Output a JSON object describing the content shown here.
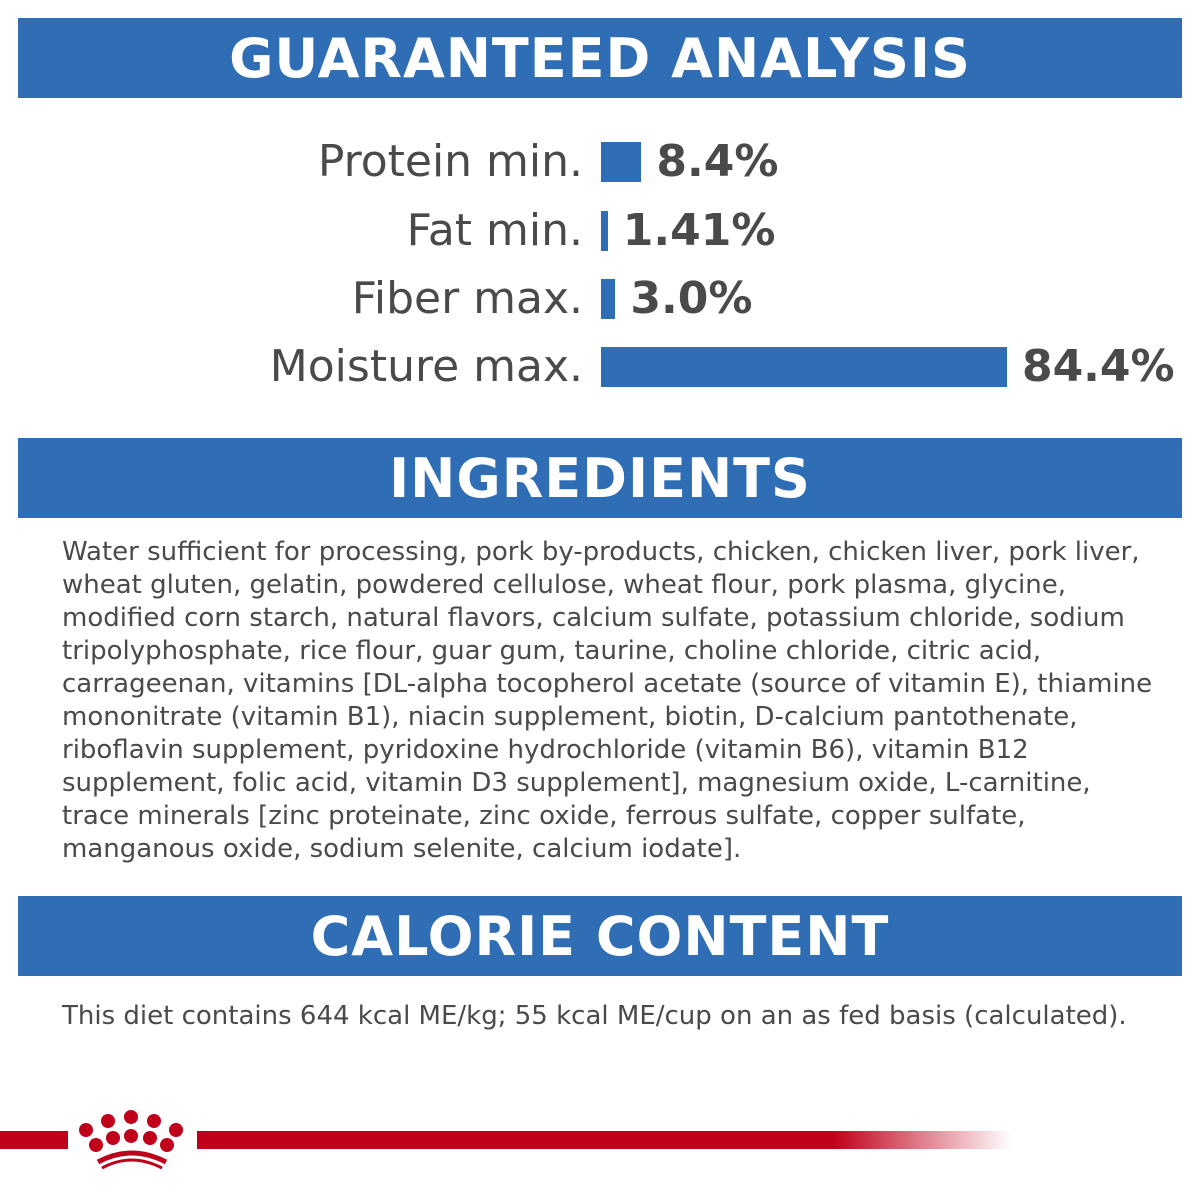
{
  "analysis": {
    "title": "GUARANTEED ANALYSIS",
    "rows": [
      {
        "label": "Protein min.",
        "value": "8.4%",
        "percent": 8.4
      },
      {
        "label": "Fat min.",
        "value": "1.41%",
        "percent": 1.41
      },
      {
        "label": "Fiber max.",
        "value": "3.0%",
        "percent": 3.0
      },
      {
        "label": "Moisture max.",
        "value": "84.4%",
        "percent": 84.4
      }
    ]
  },
  "ingredients": {
    "title": "INGREDIENTS",
    "text": "Water sufficient for processing, pork by-products, chicken, chicken liver, pork liver, wheat gluten, gelatin, powdered cellulose, wheat flour, pork plasma, glycine, modified corn starch, natural flavors, calcium sulfate, potassium chloride, sodium tripolyphosphate, rice flour, guar gum, taurine, choline chloride, citric acid, carrageenan, vitamins [DL-alpha tocopherol acetate (source of vitamin E), thiamine mononitrate (vitamin B1), niacin supplement, biotin, D-calcium pantothenate, riboflavin supplement, pyridoxine hydrochloride (vitamin B6), vitamin B12 supplement, folic acid, vitamin D3 supplement], magnesium oxide, L-carnitine, trace minerals [zinc proteinate, zinc oxide, ferrous sulfate, copper sulfate, manganous oxide, sodium selenite, calcium iodate]."
  },
  "calories": {
    "title": "CALORIE CONTENT",
    "text": "This diet contains 644 kcal ME/kg; 55 kcal ME/cup on an as fed basis (calculated)."
  },
  "colors": {
    "band": "#2f6db5",
    "brand_red": "#c0001a",
    "text": "#4a4a4a"
  },
  "logo": "crown-icon"
}
